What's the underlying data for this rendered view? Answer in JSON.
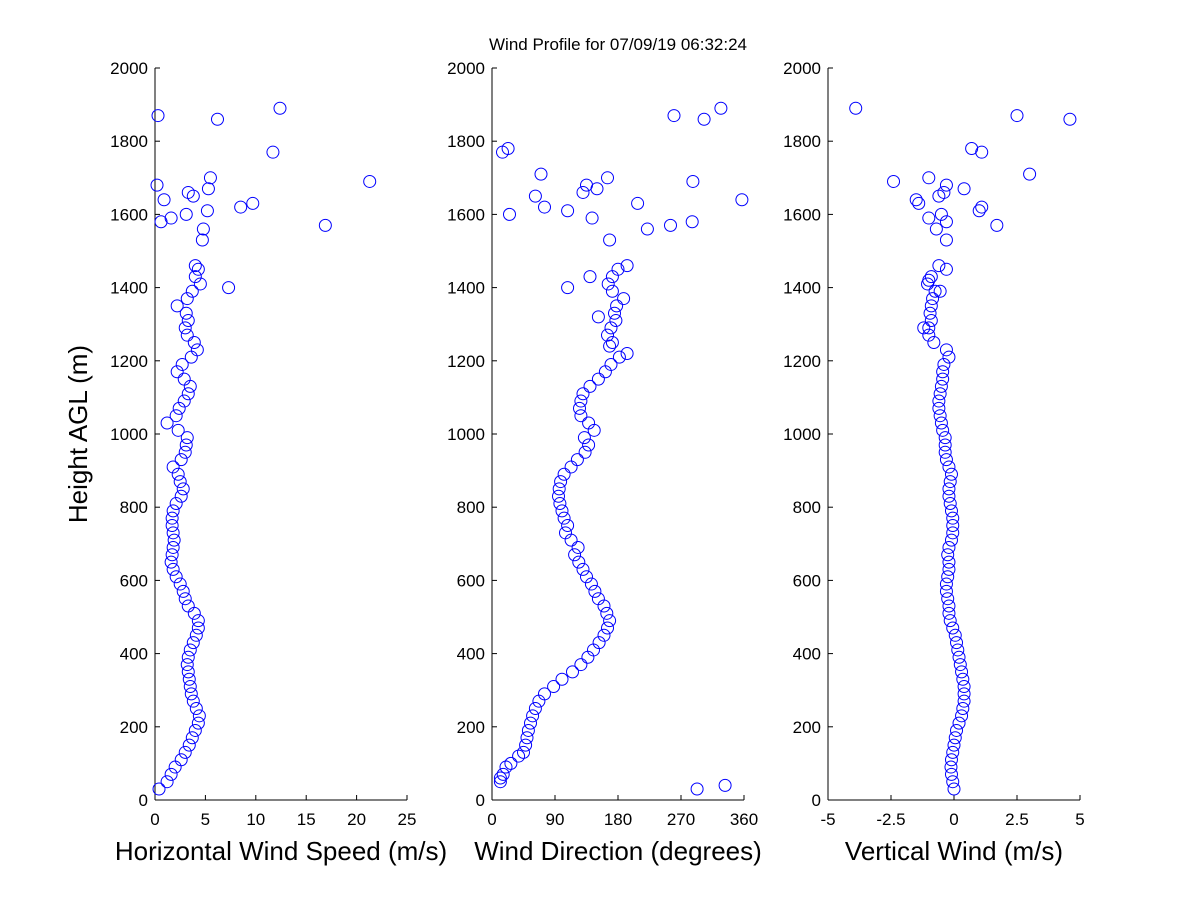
{
  "title": "Wind Profile for  07/09/19 06:32:24",
  "marker_color": "#0000ff",
  "chart_data": [
    {
      "type": "scatter",
      "xlabel": "Horizontal Wind Speed (m/s)",
      "ylabel": "Height AGL (m)",
      "xlim": [
        0,
        25
      ],
      "ylim": [
        0,
        2000
      ],
      "xticks": [
        0,
        5,
        10,
        15,
        20,
        25
      ],
      "xtick_labels": [
        "0",
        "5",
        "10",
        "15",
        "20",
        "25"
      ],
      "yticks": [
        0,
        200,
        400,
        600,
        800,
        1000,
        1200,
        1400,
        1600,
        1800,
        2000
      ],
      "ytick_labels": [
        "0",
        "200",
        "400",
        "600",
        "800",
        "1000",
        "1200",
        "1400",
        "1600",
        "1800",
        "2000"
      ],
      "points": [
        [
          0.4,
          30
        ],
        [
          1.2,
          50
        ],
        [
          1.6,
          70
        ],
        [
          2.0,
          90
        ],
        [
          2.6,
          110
        ],
        [
          3.0,
          130
        ],
        [
          3.4,
          150
        ],
        [
          3.7,
          170
        ],
        [
          4.0,
          190
        ],
        [
          4.3,
          210
        ],
        [
          4.4,
          230
        ],
        [
          4.1,
          250
        ],
        [
          3.8,
          270
        ],
        [
          3.6,
          290
        ],
        [
          3.5,
          310
        ],
        [
          3.4,
          330
        ],
        [
          3.3,
          350
        ],
        [
          3.2,
          370
        ],
        [
          3.3,
          390
        ],
        [
          3.5,
          410
        ],
        [
          3.8,
          430
        ],
        [
          4.1,
          450
        ],
        [
          4.3,
          470
        ],
        [
          4.3,
          490
        ],
        [
          3.9,
          510
        ],
        [
          3.3,
          530
        ],
        [
          3.0,
          550
        ],
        [
          2.8,
          570
        ],
        [
          2.5,
          590
        ],
        [
          2.1,
          610
        ],
        [
          1.8,
          630
        ],
        [
          1.6,
          650
        ],
        [
          1.7,
          670
        ],
        [
          1.8,
          690
        ],
        [
          1.9,
          710
        ],
        [
          1.8,
          730
        ],
        [
          1.7,
          750
        ],
        [
          1.7,
          770
        ],
        [
          1.8,
          790
        ],
        [
          2.1,
          810
        ],
        [
          2.6,
          830
        ],
        [
          2.8,
          850
        ],
        [
          2.5,
          870
        ],
        [
          2.3,
          890
        ],
        [
          1.8,
          910
        ],
        [
          2.6,
          930
        ],
        [
          3.0,
          950
        ],
        [
          3.1,
          970
        ],
        [
          3.2,
          990
        ],
        [
          2.3,
          1010
        ],
        [
          1.2,
          1030
        ],
        [
          2.1,
          1050
        ],
        [
          2.4,
          1070
        ],
        [
          2.9,
          1090
        ],
        [
          3.3,
          1110
        ],
        [
          3.5,
          1130
        ],
        [
          2.9,
          1150
        ],
        [
          2.2,
          1170
        ],
        [
          2.7,
          1190
        ],
        [
          3.6,
          1210
        ],
        [
          4.2,
          1230
        ],
        [
          3.9,
          1250
        ],
        [
          3.2,
          1270
        ],
        [
          3.0,
          1290
        ],
        [
          3.3,
          1310
        ],
        [
          3.1,
          1330
        ],
        [
          2.2,
          1350
        ],
        [
          3.2,
          1370
        ],
        [
          3.7,
          1390
        ],
        [
          4.5,
          1410
        ],
        [
          4.0,
          1430
        ],
        [
          4.3,
          1450
        ],
        [
          4.0,
          1460
        ],
        [
          7.3,
          1400
        ],
        [
          4.7,
          1530
        ],
        [
          4.8,
          1560
        ],
        [
          16.9,
          1570
        ],
        [
          0.6,
          1580
        ],
        [
          1.6,
          1590
        ],
        [
          3.1,
          1600
        ],
        [
          5.2,
          1610
        ],
        [
          8.5,
          1620
        ],
        [
          9.7,
          1630
        ],
        [
          0.9,
          1640
        ],
        [
          3.8,
          1650
        ],
        [
          3.3,
          1660
        ],
        [
          5.3,
          1670
        ],
        [
          0.2,
          1680
        ],
        [
          21.3,
          1690
        ],
        [
          5.5,
          1700
        ],
        [
          11.7,
          1770
        ],
        [
          6.2,
          1860
        ],
        [
          0.3,
          1870
        ],
        [
          12.4,
          1890
        ]
      ]
    },
    {
      "type": "scatter",
      "xlabel": "Wind Direction (degrees)",
      "ylabel": "",
      "xlim": [
        0,
        360
      ],
      "ylim": [
        0,
        2000
      ],
      "xticks": [
        0,
        90,
        180,
        270,
        360
      ],
      "xtick_labels": [
        "0",
        "90",
        "180",
        "270",
        "360"
      ],
      "yticks": [
        0,
        200,
        400,
        600,
        800,
        1000,
        1200,
        1400,
        1600,
        1800,
        2000
      ],
      "ytick_labels": [
        "0",
        "200",
        "400",
        "600",
        "800",
        "1000",
        "1200",
        "1400",
        "1600",
        "1800",
        "2000"
      ],
      "points": [
        [
          293,
          30
        ],
        [
          333,
          40
        ],
        [
          12,
          50
        ],
        [
          12,
          60
        ],
        [
          16,
          70
        ],
        [
          20,
          90
        ],
        [
          27,
          100
        ],
        [
          38,
          120
        ],
        [
          45,
          130
        ],
        [
          48,
          150
        ],
        [
          50,
          170
        ],
        [
          52,
          190
        ],
        [
          55,
          210
        ],
        [
          58,
          230
        ],
        [
          62,
          250
        ],
        [
          67,
          270
        ],
        [
          75,
          290
        ],
        [
          88,
          310
        ],
        [
          100,
          330
        ],
        [
          115,
          350
        ],
        [
          127,
          370
        ],
        [
          137,
          390
        ],
        [
          145,
          410
        ],
        [
          153,
          430
        ],
        [
          160,
          450
        ],
        [
          165,
          470
        ],
        [
          168,
          490
        ],
        [
          164,
          510
        ],
        [
          160,
          530
        ],
        [
          152,
          550
        ],
        [
          147,
          570
        ],
        [
          142,
          590
        ],
        [
          135,
          610
        ],
        [
          130,
          630
        ],
        [
          124,
          650
        ],
        [
          118,
          670
        ],
        [
          123,
          690
        ],
        [
          113,
          710
        ],
        [
          105,
          730
        ],
        [
          108,
          750
        ],
        [
          103,
          770
        ],
        [
          100,
          790
        ],
        [
          97,
          810
        ],
        [
          95,
          830
        ],
        [
          96,
          850
        ],
        [
          98,
          870
        ],
        [
          103,
          890
        ],
        [
          113,
          910
        ],
        [
          122,
          930
        ],
        [
          133,
          950
        ],
        [
          138,
          970
        ],
        [
          132,
          990
        ],
        [
          146,
          1010
        ],
        [
          138,
          1030
        ],
        [
          127,
          1050
        ],
        [
          125,
          1070
        ],
        [
          127,
          1090
        ],
        [
          130,
          1110
        ],
        [
          140,
          1130
        ],
        [
          152,
          1150
        ],
        [
          162,
          1170
        ],
        [
          170,
          1190
        ],
        [
          182,
          1210
        ],
        [
          193,
          1220
        ],
        [
          172,
          1250
        ],
        [
          165,
          1270
        ],
        [
          170,
          1290
        ],
        [
          177,
          1310
        ],
        [
          175,
          1330
        ],
        [
          178,
          1350
        ],
        [
          188,
          1370
        ],
        [
          172,
          1390
        ],
        [
          166,
          1410
        ],
        [
          172,
          1430
        ],
        [
          180,
          1450
        ],
        [
          193,
          1460
        ],
        [
          140,
          1430
        ],
        [
          108,
          1400
        ],
        [
          152,
          1320
        ],
        [
          168,
          1240
        ],
        [
          168,
          1530
        ],
        [
          222,
          1560
        ],
        [
          255,
          1570
        ],
        [
          286,
          1580
        ],
        [
          143,
          1590
        ],
        [
          25,
          1600
        ],
        [
          108,
          1610
        ],
        [
          75,
          1620
        ],
        [
          208,
          1630
        ],
        [
          357,
          1640
        ],
        [
          62,
          1650
        ],
        [
          130,
          1660
        ],
        [
          150,
          1670
        ],
        [
          135,
          1680
        ],
        [
          287,
          1690
        ],
        [
          165,
          1700
        ],
        [
          70,
          1710
        ],
        [
          15,
          1770
        ],
        [
          23,
          1780
        ],
        [
          303,
          1860
        ],
        [
          260,
          1870
        ],
        [
          327,
          1890
        ]
      ]
    },
    {
      "type": "scatter",
      "xlabel": "Vertical Wind (m/s)",
      "ylabel": "",
      "xlim": [
        -5,
        5
      ],
      "ylim": [
        0,
        2000
      ],
      "xticks": [
        -5,
        -2.5,
        0,
        2.5,
        5
      ],
      "xtick_labels": [
        "-5",
        "-2.5",
        "0",
        "2.5",
        "5"
      ],
      "yticks": [
        0,
        200,
        400,
        600,
        800,
        1000,
        1200,
        1400,
        1600,
        1800,
        2000
      ],
      "ytick_labels": [
        "0",
        "200",
        "400",
        "600",
        "800",
        "1000",
        "1200",
        "1400",
        "1600",
        "1800",
        "2000"
      ],
      "points": [
        [
          0.0,
          30
        ],
        [
          -0.05,
          50
        ],
        [
          -0.1,
          70
        ],
        [
          -0.12,
          90
        ],
        [
          -0.1,
          110
        ],
        [
          -0.05,
          130
        ],
        [
          0.0,
          150
        ],
        [
          0.05,
          170
        ],
        [
          0.1,
          190
        ],
        [
          0.2,
          210
        ],
        [
          0.3,
          230
        ],
        [
          0.35,
          250
        ],
        [
          0.4,
          270
        ],
        [
          0.4,
          290
        ],
        [
          0.4,
          310
        ],
        [
          0.35,
          330
        ],
        [
          0.3,
          350
        ],
        [
          0.25,
          370
        ],
        [
          0.2,
          390
        ],
        [
          0.15,
          410
        ],
        [
          0.1,
          430
        ],
        [
          0.05,
          450
        ],
        [
          -0.05,
          470
        ],
        [
          -0.15,
          490
        ],
        [
          -0.2,
          510
        ],
        [
          -0.2,
          530
        ],
        [
          -0.25,
          550
        ],
        [
          -0.3,
          570
        ],
        [
          -0.3,
          590
        ],
        [
          -0.25,
          610
        ],
        [
          -0.2,
          630
        ],
        [
          -0.2,
          650
        ],
        [
          -0.25,
          670
        ],
        [
          -0.2,
          690
        ],
        [
          -0.1,
          710
        ],
        [
          -0.05,
          730
        ],
        [
          -0.05,
          750
        ],
        [
          -0.05,
          770
        ],
        [
          -0.1,
          790
        ],
        [
          -0.15,
          810
        ],
        [
          -0.2,
          830
        ],
        [
          -0.2,
          850
        ],
        [
          -0.15,
          870
        ],
        [
          -0.1,
          890
        ],
        [
          -0.2,
          910
        ],
        [
          -0.3,
          930
        ],
        [
          -0.35,
          950
        ],
        [
          -0.35,
          970
        ],
        [
          -0.35,
          990
        ],
        [
          -0.45,
          1010
        ],
        [
          -0.5,
          1030
        ],
        [
          -0.55,
          1050
        ],
        [
          -0.6,
          1070
        ],
        [
          -0.6,
          1090
        ],
        [
          -0.55,
          1110
        ],
        [
          -0.5,
          1130
        ],
        [
          -0.45,
          1150
        ],
        [
          -0.45,
          1170
        ],
        [
          -0.4,
          1190
        ],
        [
          -0.2,
          1210
        ],
        [
          -0.3,
          1230
        ],
        [
          -0.8,
          1250
        ],
        [
          -1.0,
          1270
        ],
        [
          -1.0,
          1290
        ],
        [
          -0.9,
          1310
        ],
        [
          -0.95,
          1330
        ],
        [
          -0.9,
          1350
        ],
        [
          -0.85,
          1370
        ],
        [
          -0.75,
          1390
        ],
        [
          -1.05,
          1410
        ],
        [
          -0.9,
          1430
        ],
        [
          -0.3,
          1450
        ],
        [
          -0.6,
          1460
        ],
        [
          -1.0,
          1420
        ],
        [
          -1.2,
          1290
        ],
        [
          -0.55,
          1390
        ],
        [
          -0.3,
          1530
        ],
        [
          -0.7,
          1560
        ],
        [
          1.7,
          1570
        ],
        [
          -0.3,
          1580
        ],
        [
          -1.0,
          1590
        ],
        [
          -0.5,
          1600
        ],
        [
          1.0,
          1610
        ],
        [
          1.1,
          1620
        ],
        [
          -1.4,
          1630
        ],
        [
          -1.5,
          1640
        ],
        [
          -0.6,
          1650
        ],
        [
          -0.4,
          1660
        ],
        [
          0.4,
          1670
        ],
        [
          -0.3,
          1680
        ],
        [
          -2.4,
          1690
        ],
        [
          -1.0,
          1700
        ],
        [
          3.0,
          1710
        ],
        [
          0.7,
          1780
        ],
        [
          1.1,
          1770
        ],
        [
          4.6,
          1860
        ],
        [
          2.5,
          1870
        ],
        [
          -3.9,
          1890
        ]
      ]
    }
  ]
}
